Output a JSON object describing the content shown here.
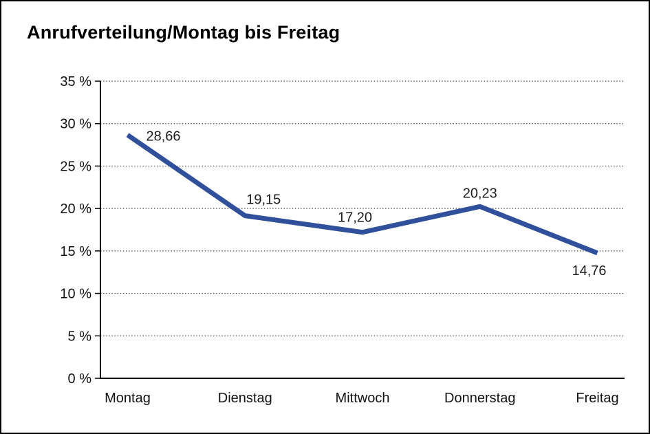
{
  "page": {
    "background": "#ffffff",
    "border_color": "#000000"
  },
  "title": "Anrufverteilung/Montag bis Freitag",
  "chart_data": {
    "type": "line",
    "title": "Anrufverteilung/Montag bis Freitag",
    "categories": [
      "Montag",
      "Dienstag",
      "Mittwoch",
      "Donnerstag",
      "Freitag"
    ],
    "series": [
      {
        "values": [
          28.66,
          19.15,
          17.2,
          20.23,
          14.76
        ],
        "point_labels": [
          "28,66",
          "19,15",
          "17,20",
          "20,23",
          "14,76"
        ],
        "color": "#30509c"
      }
    ],
    "xlabel": "",
    "ylabel": "",
    "ylim": [
      0,
      35
    ],
    "y_tick_step": 5,
    "y_ticks": [
      {
        "value": 35,
        "label": "35 %"
      },
      {
        "value": 30,
        "label": "30 %"
      },
      {
        "value": 25,
        "label": "25 %"
      },
      {
        "value": 20,
        "label": "20 %"
      },
      {
        "value": 15,
        "label": "15 %"
      },
      {
        "value": 10,
        "label": "10 %"
      },
      {
        "value": 5,
        "label": "5 %"
      },
      {
        "value": 0,
        "label": "0 %"
      }
    ],
    "grid": {
      "horizontal": true,
      "vertical": false,
      "style": "dotted"
    },
    "legend": {
      "visible": false
    },
    "axis_color": "#000000",
    "grid_color": "#454545",
    "text_color": "#111111"
  }
}
